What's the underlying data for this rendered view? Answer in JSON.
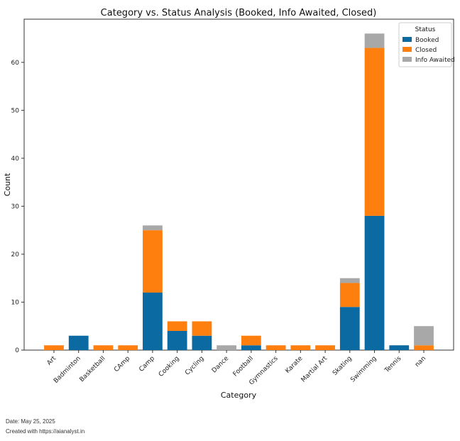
{
  "chart_data": {
    "type": "bar",
    "stacked": true,
    "title": "Category vs. Status Analysis (Booked, Info Awaited, Closed)",
    "xlabel": "Category",
    "ylabel": "Count",
    "ylim": [
      0,
      69
    ],
    "yticks": [
      0,
      10,
      20,
      30,
      40,
      50,
      60
    ],
    "grid": false,
    "categories": [
      "Art",
      "Badminton",
      "Basketball",
      "CAmp",
      "Camp",
      "Cooking",
      "Cycling",
      "Dance",
      "Football",
      "Gymnastics",
      "Karate",
      "Martial Art",
      "Skating",
      "Swimming",
      "Tennis",
      "nan"
    ],
    "series": [
      {
        "name": "Booked",
        "color": "#0a6aa1",
        "values": [
          0,
          3,
          0,
          0,
          12,
          4,
          3,
          0,
          1,
          0,
          0,
          0,
          9,
          28,
          1,
          0
        ]
      },
      {
        "name": "Closed",
        "color": "#ff7f0e",
        "values": [
          1,
          0,
          1,
          1,
          13,
          2,
          3,
          0,
          2,
          1,
          1,
          1,
          5,
          35,
          0,
          1
        ]
      },
      {
        "name": "Info Awaited",
        "color": "#a8a8a8",
        "values": [
          0,
          0,
          0,
          0,
          1,
          0,
          0,
          1,
          0,
          0,
          0,
          0,
          1,
          3,
          0,
          4
        ]
      }
    ],
    "legend": {
      "title": "Status",
      "position": "top-right"
    }
  },
  "footer": {
    "date": "Date: May 25, 2025",
    "created": "Created with https://aianalyst.in"
  }
}
